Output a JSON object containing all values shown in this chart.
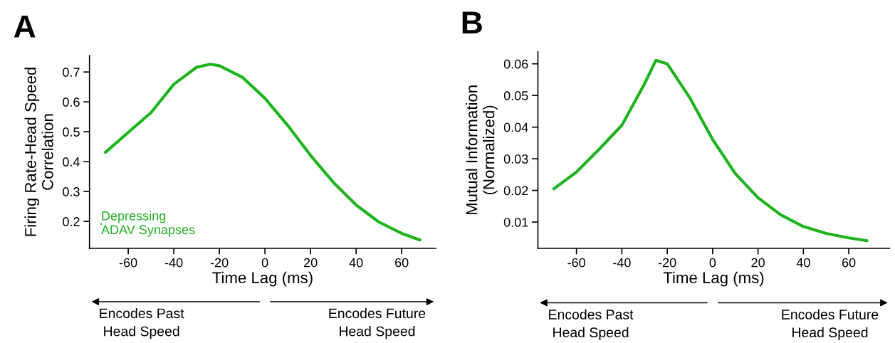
{
  "chart_data": [
    {
      "type": "line",
      "xlabel": "Time Lag (ms)",
      "ylabel": "Firing Rate-Head Speed\nCorrelation",
      "xlim": [
        -77,
        75
      ],
      "ylim": [
        0.11,
        0.755
      ],
      "xticks": [
        -60,
        -40,
        -20,
        0,
        20,
        40,
        60
      ],
      "yticks": [
        0.2,
        0.3,
        0.4,
        0.5,
        0.6,
        0.7
      ],
      "grid": false,
      "legend": "bottom left",
      "annotations": [
        "A",
        "Encodes Past\nHead Speed",
        "Encodes Future\nHead Speed"
      ],
      "series": [
        {
          "name": "Depressing\nADAV Synapses",
          "color": "#1eb41e",
          "x": [
            -70,
            -60,
            -50,
            -40,
            -30,
            -24,
            -20,
            -10,
            0,
            10,
            20,
            30,
            40,
            50,
            60,
            68
          ],
          "values": [
            0.431,
            0.498,
            0.564,
            0.659,
            0.716,
            0.726,
            0.721,
            0.683,
            0.612,
            0.521,
            0.421,
            0.331,
            0.255,
            0.198,
            0.16,
            0.138
          ]
        }
      ]
    },
    {
      "type": "line",
      "xlabel": "Time Lag (ms)",
      "ylabel": "Mutual Information\n(Normalized)",
      "xlim": [
        -77,
        78
      ],
      "ylim": [
        0.0017,
        0.0638
      ],
      "xticks": [
        -60,
        -40,
        -20,
        0,
        20,
        40,
        60
      ],
      "yticks": [
        0.01,
        0.02,
        0.03,
        0.04,
        0.05,
        0.06
      ],
      "grid": false,
      "annotations": [
        "B",
        "Encodes Past\nHead Speed",
        "Encodes Future\nHead Speed"
      ],
      "series": [
        {
          "color": "#1eb41e",
          "x": [
            -70,
            -60,
            -50,
            -40,
            -30,
            -25,
            -20,
            -10,
            0,
            10,
            20,
            30,
            40,
            50,
            60,
            68
          ],
          "values": [
            0.0205,
            0.0258,
            0.033,
            0.0406,
            0.0537,
            0.0611,
            0.06,
            0.0492,
            0.0361,
            0.0253,
            0.0177,
            0.0123,
            0.0086,
            0.0064,
            0.005,
            0.0041
          ]
        }
      ]
    }
  ]
}
